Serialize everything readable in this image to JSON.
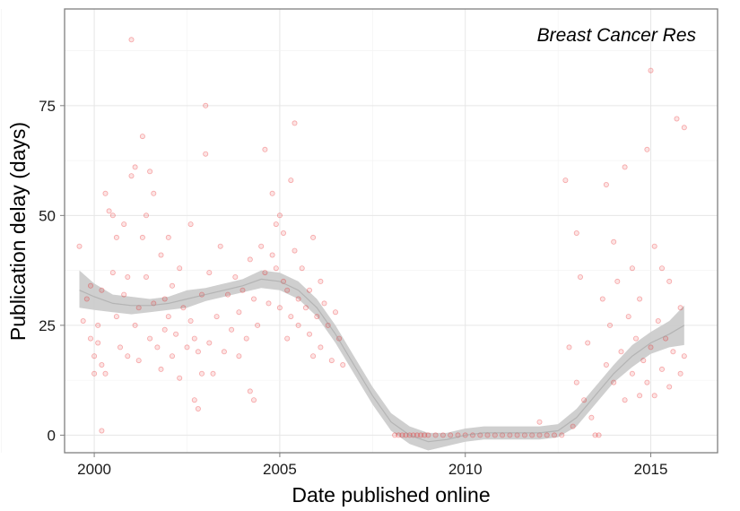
{
  "chart_data": {
    "type": "scatter",
    "title": "",
    "annotation": "Breast Cancer Res",
    "xlabel": "Date published online",
    "ylabel": "Publication delay (days)",
    "xlim": [
      1999.2,
      2016.8
    ],
    "ylim": [
      -4,
      97
    ],
    "x_ticks": [
      2000,
      2005,
      2010,
      2015
    ],
    "x_tick_labels": [
      "2000",
      "2005",
      "2010",
      "2015"
    ],
    "y_ticks": [
      0,
      25,
      50,
      75
    ],
    "y_tick_labels": [
      "0",
      "25",
      "50",
      "75"
    ],
    "grid": true,
    "point_color": "#e8181b",
    "smooth_color": "#999999",
    "smooth_band_color": "#cccccc",
    "series": [
      {
        "type": "scatter",
        "points": [
          [
            1999.6,
            43
          ],
          [
            1999.7,
            26
          ],
          [
            1999.8,
            31
          ],
          [
            1999.9,
            34
          ],
          [
            1999.9,
            22
          ],
          [
            2000.0,
            18
          ],
          [
            2000.0,
            14
          ],
          [
            2000.1,
            21
          ],
          [
            2000.1,
            25
          ],
          [
            2000.2,
            33
          ],
          [
            2000.2,
            16
          ],
          [
            2000.2,
            1
          ],
          [
            2000.3,
            14
          ],
          [
            2000.3,
            55
          ],
          [
            2000.4,
            51
          ],
          [
            2000.5,
            50
          ],
          [
            2000.5,
            37
          ],
          [
            2000.6,
            45
          ],
          [
            2000.6,
            27
          ],
          [
            2000.7,
            20
          ],
          [
            2000.8,
            48
          ],
          [
            2000.8,
            32
          ],
          [
            2000.9,
            36
          ],
          [
            2000.9,
            18
          ],
          [
            2001.0,
            59
          ],
          [
            2001.0,
            90
          ],
          [
            2001.1,
            61
          ],
          [
            2001.1,
            25
          ],
          [
            2001.2,
            29
          ],
          [
            2001.2,
            17
          ],
          [
            2001.3,
            45
          ],
          [
            2001.3,
            68
          ],
          [
            2001.4,
            50
          ],
          [
            2001.4,
            36
          ],
          [
            2001.5,
            60
          ],
          [
            2001.5,
            22
          ],
          [
            2001.6,
            55
          ],
          [
            2001.6,
            30
          ],
          [
            2001.7,
            20
          ],
          [
            2001.8,
            41
          ],
          [
            2001.8,
            15
          ],
          [
            2001.9,
            31
          ],
          [
            2001.9,
            24
          ],
          [
            2002.0,
            27
          ],
          [
            2002.0,
            45
          ],
          [
            2002.1,
            18
          ],
          [
            2002.1,
            34
          ],
          [
            2002.2,
            23
          ],
          [
            2002.3,
            38
          ],
          [
            2002.3,
            13
          ],
          [
            2002.4,
            29
          ],
          [
            2002.5,
            20
          ],
          [
            2002.6,
            26
          ],
          [
            2002.6,
            48
          ],
          [
            2002.7,
            8
          ],
          [
            2002.7,
            22
          ],
          [
            2002.8,
            19
          ],
          [
            2002.8,
            6
          ],
          [
            2002.9,
            32
          ],
          [
            2002.9,
            14
          ],
          [
            2003.0,
            64
          ],
          [
            2003.0,
            75
          ],
          [
            2003.1,
            21
          ],
          [
            2003.1,
            37
          ],
          [
            2003.2,
            14
          ],
          [
            2003.3,
            27
          ],
          [
            2003.4,
            43
          ],
          [
            2003.5,
            19
          ],
          [
            2003.6,
            32
          ],
          [
            2003.7,
            24
          ],
          [
            2003.8,
            36
          ],
          [
            2003.9,
            18
          ],
          [
            2003.9,
            28
          ],
          [
            2004.0,
            33
          ],
          [
            2004.1,
            22
          ],
          [
            2004.2,
            40
          ],
          [
            2004.2,
            10
          ],
          [
            2004.3,
            31
          ],
          [
            2004.3,
            8
          ],
          [
            2004.4,
            25
          ],
          [
            2004.5,
            43
          ],
          [
            2004.6,
            37
          ],
          [
            2004.6,
            65
          ],
          [
            2004.7,
            30
          ],
          [
            2004.8,
            41
          ],
          [
            2004.8,
            55
          ],
          [
            2004.9,
            48
          ],
          [
            2004.9,
            38
          ],
          [
            2005.0,
            50
          ],
          [
            2005.0,
            29
          ],
          [
            2005.1,
            35
          ],
          [
            2005.1,
            46
          ],
          [
            2005.2,
            33
          ],
          [
            2005.2,
            22
          ],
          [
            2005.3,
            58
          ],
          [
            2005.3,
            27
          ],
          [
            2005.4,
            42
          ],
          [
            2005.4,
            71
          ],
          [
            2005.5,
            31
          ],
          [
            2005.5,
            25
          ],
          [
            2005.6,
            38
          ],
          [
            2005.7,
            29
          ],
          [
            2005.8,
            23
          ],
          [
            2005.8,
            33
          ],
          [
            2005.9,
            45
          ],
          [
            2005.9,
            18
          ],
          [
            2006.0,
            27
          ],
          [
            2006.1,
            35
          ],
          [
            2006.1,
            20
          ],
          [
            2006.2,
            30
          ],
          [
            2006.3,
            25
          ],
          [
            2006.4,
            17
          ],
          [
            2006.5,
            28
          ],
          [
            2006.6,
            22
          ],
          [
            2006.7,
            16
          ],
          [
            2008.1,
            0
          ],
          [
            2008.2,
            0
          ],
          [
            2008.3,
            0
          ],
          [
            2008.4,
            0
          ],
          [
            2008.5,
            0
          ],
          [
            2008.6,
            0
          ],
          [
            2008.7,
            0
          ],
          [
            2008.8,
            0
          ],
          [
            2008.9,
            0
          ],
          [
            2009.0,
            0
          ],
          [
            2009.2,
            0
          ],
          [
            2009.4,
            0
          ],
          [
            2009.6,
            0
          ],
          [
            2009.8,
            0
          ],
          [
            2010.0,
            0
          ],
          [
            2010.2,
            0
          ],
          [
            2010.4,
            0
          ],
          [
            2010.6,
            0
          ],
          [
            2010.8,
            0
          ],
          [
            2011.0,
            0
          ],
          [
            2011.2,
            0
          ],
          [
            2011.4,
            0
          ],
          [
            2011.6,
            0
          ],
          [
            2011.8,
            0
          ],
          [
            2012.0,
            0
          ],
          [
            2012.0,
            3
          ],
          [
            2012.2,
            0
          ],
          [
            2012.4,
            0
          ],
          [
            2012.6,
            0
          ],
          [
            2012.7,
            58
          ],
          [
            2012.8,
            20
          ],
          [
            2012.9,
            2
          ],
          [
            2013.0,
            46
          ],
          [
            2013.0,
            12
          ],
          [
            2013.1,
            36
          ],
          [
            2013.2,
            8
          ],
          [
            2013.3,
            21
          ],
          [
            2013.4,
            4
          ],
          [
            2013.5,
            0
          ],
          [
            2013.6,
            0
          ],
          [
            2013.7,
            31
          ],
          [
            2013.8,
            16
          ],
          [
            2013.8,
            57
          ],
          [
            2013.9,
            25
          ],
          [
            2014.0,
            12
          ],
          [
            2014.0,
            44
          ],
          [
            2014.1,
            35
          ],
          [
            2014.2,
            19
          ],
          [
            2014.3,
            61
          ],
          [
            2014.3,
            8
          ],
          [
            2014.4,
            27
          ],
          [
            2014.5,
            14
          ],
          [
            2014.5,
            38
          ],
          [
            2014.6,
            22
          ],
          [
            2014.7,
            9
          ],
          [
            2014.7,
            31
          ],
          [
            2014.8,
            17
          ],
          [
            2014.9,
            65
          ],
          [
            2014.9,
            12
          ],
          [
            2015.0,
            83
          ],
          [
            2015.0,
            20
          ],
          [
            2015.1,
            43
          ],
          [
            2015.1,
            9
          ],
          [
            2015.2,
            26
          ],
          [
            2015.3,
            15
          ],
          [
            2015.3,
            38
          ],
          [
            2015.4,
            22
          ],
          [
            2015.5,
            11
          ],
          [
            2015.5,
            35
          ],
          [
            2015.6,
            19
          ],
          [
            2015.7,
            72
          ],
          [
            2015.8,
            14
          ],
          [
            2015.8,
            29
          ],
          [
            2015.9,
            70
          ],
          [
            2015.9,
            18
          ]
        ]
      },
      {
        "type": "line",
        "name": "",
        "x": [
          1999.6,
          2000.0,
          2000.5,
          2001.0,
          2001.5,
          2002.0,
          2002.5,
          2003.0,
          2003.5,
          2004.0,
          2004.5,
          2005.0,
          2005.5,
          2006.0,
          2006.5,
          2007.0,
          2007.5,
          2008.0,
          2008.5,
          2009.0,
          2009.5,
          2010.0,
          2010.5,
          2011.0,
          2011.5,
          2012.0,
          2012.5,
          2013.0,
          2013.5,
          2014.0,
          2014.5,
          2015.0,
          2015.5,
          2015.9
        ],
        "y": [
          33,
          31.5,
          30,
          29.5,
          29.5,
          30,
          31,
          32,
          33,
          34,
          35.5,
          35,
          33,
          29,
          23,
          16,
          9,
          3,
          0,
          -1.5,
          -1,
          0,
          0.5,
          0.5,
          0.5,
          0.5,
          1,
          4,
          9,
          14,
          18,
          21,
          23,
          25
        ],
        "band_lower": [
          29,
          28.5,
          28,
          27.5,
          28,
          28.5,
          29,
          30.5,
          31.5,
          32.5,
          33.5,
          33,
          31,
          27,
          21,
          14,
          7,
          1,
          -2,
          -3.5,
          -2.5,
          -1.5,
          -1,
          -1,
          -1,
          -1,
          -0.5,
          2,
          7,
          12,
          15.5,
          18.5,
          20,
          20.5
        ],
        "band_upper": [
          37.5,
          34.5,
          32,
          31.5,
          31,
          31.5,
          33,
          33.5,
          34.5,
          35.5,
          37.5,
          37,
          35,
          31,
          25,
          18,
          11,
          5,
          2,
          0.5,
          0.5,
          1.5,
          2,
          2,
          2,
          2,
          2.5,
          6,
          11,
          16,
          20.5,
          23.5,
          26,
          29.5
        ]
      }
    ]
  }
}
